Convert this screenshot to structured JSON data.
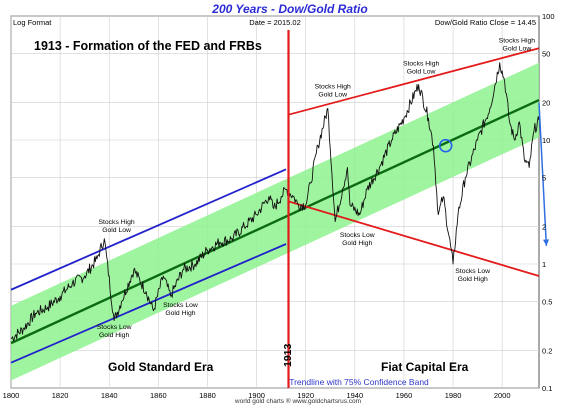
{
  "chart_data": {
    "type": "line",
    "title": "200 Years - Dow/Gold Ratio",
    "header_left": "Log Format",
    "header_center": "Date = 2015.02",
    "header_right": "Dow/Gold Ratio Close = 14.45",
    "headline": "1913 - Formation of the FED and FRBs",
    "y_scale": "log",
    "xlim": [
      1800,
      2015
    ],
    "ylim": [
      0.1,
      100
    ],
    "x_ticks": [
      "1800",
      "1820",
      "1840",
      "1860",
      "1880",
      "1900",
      "1920",
      "1940",
      "1960",
      "1980",
      "2000"
    ],
    "x_tick_values": [
      1800,
      1820,
      1840,
      1860,
      1880,
      1900,
      1920,
      1940,
      1960,
      1980,
      2000
    ],
    "y_ticks": [
      "100",
      "50",
      "20",
      "10",
      "5",
      "2",
      "1",
      "0.5",
      "0.2",
      "0.1"
    ],
    "y_tick_values": [
      100,
      50,
      20,
      10,
      5,
      2,
      1,
      0.5,
      0.2,
      0.1
    ],
    "grid": true,
    "vertical_marker": {
      "x": 1913,
      "label": "1913"
    },
    "era_labels": {
      "gold_standard": "Gold Standard Era",
      "fiat": "Fiat Capital Era"
    },
    "band_label": "Trendline with 75% Confidence Band",
    "footer": "world gold charts ® www.goldchartsrus.com",
    "trend_line": {
      "start": [
        1800,
        0.23
      ],
      "end": [
        2015,
        21
      ]
    },
    "confidence_band": {
      "upper_start": 0.46,
      "lower_start": 0.115,
      "upper_end": 42,
      "lower_end": 10.5
    },
    "gold_standard_channel": {
      "upper": [
        [
          1800,
          0.62
        ],
        [
          1912,
          5.8
        ]
      ],
      "lower": [
        [
          1800,
          0.16
        ],
        [
          1912,
          1.45
        ]
      ]
    },
    "fiat_channel": {
      "upper": [
        [
          1913,
          16
        ],
        [
          2015,
          55
        ]
      ],
      "lower": [
        [
          1913,
          3.2
        ],
        [
          2015,
          0.8
        ]
      ]
    },
    "projection_arrow": {
      "start": [
        2015,
        20
      ],
      "end": [
        2018,
        1.4
      ]
    },
    "highlight_circle": {
      "x": 1977,
      "y": 9
    },
    "annotations": [
      {
        "lines": [
          "Stocks High",
          "Gold Low"
        ],
        "x": 1843,
        "y": 2.1
      },
      {
        "lines": [
          "Stocks Low",
          "Gold High"
        ],
        "x": 1842,
        "y": 0.3
      },
      {
        "lines": [
          "Stocks Low",
          "Gold High"
        ],
        "x": 1869,
        "y": 0.45
      },
      {
        "lines": [
          "Stocks High",
          "Gold Low"
        ],
        "x": 1931,
        "y": 26
      },
      {
        "lines": [
          "Stocks Low",
          "Gold High"
        ],
        "x": 1941,
        "y": 1.65
      },
      {
        "lines": [
          "Stocks High",
          "Gold Low"
        ],
        "x": 1967,
        "y": 40
      },
      {
        "lines": [
          "Stocks Low",
          "Gold High"
        ],
        "x": 1988,
        "y": 0.85
      },
      {
        "lines": [
          "Stocks High",
          "Gold Low"
        ],
        "x": 2006,
        "y": 61
      }
    ],
    "series": [
      {
        "x": [
          1800,
          1805,
          1810,
          1815,
          1820,
          1825,
          1830,
          1835,
          1838,
          1842,
          1845,
          1850,
          1855,
          1858,
          1862,
          1865,
          1870,
          1875,
          1880,
          1885,
          1890,
          1895,
          1900,
          1905,
          1907,
          1910,
          1912,
          1915,
          1917,
          1920,
          1922,
          1925,
          1929,
          1932,
          1935,
          1937,
          1938,
          1942,
          1945,
          1950,
          1955,
          1960,
          1966,
          1970,
          1972,
          1974,
          1976,
          1980,
          1982,
          1985,
          1990,
          1995,
          1999,
          2001,
          2003,
          2005,
          2007,
          2009,
          2011,
          2013,
          2015
        ],
        "y": [
          0.25,
          0.3,
          0.4,
          0.45,
          0.55,
          0.7,
          0.8,
          1.1,
          1.6,
          0.35,
          0.5,
          0.9,
          0.6,
          0.42,
          0.8,
          0.55,
          0.9,
          1.0,
          1.3,
          1.5,
          1.6,
          2.0,
          2.5,
          3.5,
          2.8,
          3.5,
          4.0,
          3.5,
          3.0,
          3.0,
          4.5,
          9.0,
          18.0,
          2.2,
          4.0,
          6.0,
          3.0,
          2.5,
          4.0,
          6.0,
          10.0,
          15.0,
          28.0,
          15.0,
          9.0,
          2.5,
          3.5,
          1.0,
          2.5,
          5.0,
          10.0,
          18.0,
          42.0,
          30.0,
          14.0,
          10.0,
          14.0,
          7.0,
          6.0,
          12.0,
          14.45
        ]
      }
    ]
  }
}
